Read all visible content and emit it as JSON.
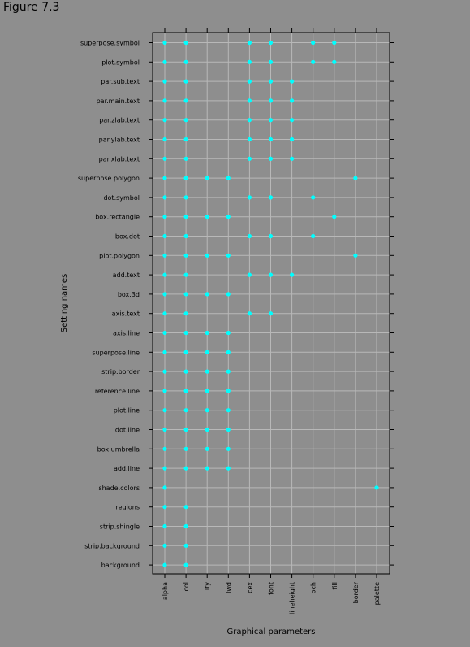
{
  "figure_label": "Figure 7.3",
  "chart_data": {
    "type": "scatter",
    "xlabel": "Graphical parameters",
    "ylabel": "Setting names",
    "grid": true,
    "colors": {
      "background": "#8e8e8e",
      "panel_border": "#000000",
      "grid": "#b8b8b8",
      "point": "#00ffff"
    },
    "x_categories": [
      "alpha",
      "col",
      "lty",
      "lwd",
      "cex",
      "font",
      "lineheight",
      "pch",
      "fill",
      "border",
      "palette"
    ],
    "y_categories": [
      "superpose.symbol",
      "plot.symbol",
      "par.sub.text",
      "par.main.text",
      "par.zlab.text",
      "par.ylab.text",
      "par.xlab.text",
      "superpose.polygon",
      "dot.symbol",
      "box.rectangle",
      "box.dot",
      "plot.polygon",
      "add.text",
      "box.3d",
      "axis.text",
      "axis.line",
      "superpose.line",
      "strip.border",
      "reference.line",
      "plot.line",
      "dot.line",
      "box.umbrella",
      "add.line",
      "shade.colors",
      "regions",
      "strip.shingle",
      "strip.background",
      "background"
    ],
    "points": [
      {
        "setting": "superpose.symbol",
        "params": [
          "alpha",
          "col",
          "cex",
          "font",
          "pch",
          "fill"
        ]
      },
      {
        "setting": "plot.symbol",
        "params": [
          "alpha",
          "col",
          "cex",
          "font",
          "pch",
          "fill"
        ]
      },
      {
        "setting": "par.sub.text",
        "params": [
          "alpha",
          "col",
          "cex",
          "font",
          "lineheight"
        ]
      },
      {
        "setting": "par.main.text",
        "params": [
          "alpha",
          "col",
          "cex",
          "font",
          "lineheight"
        ]
      },
      {
        "setting": "par.zlab.text",
        "params": [
          "alpha",
          "col",
          "cex",
          "font",
          "lineheight"
        ]
      },
      {
        "setting": "par.ylab.text",
        "params": [
          "alpha",
          "col",
          "cex",
          "font",
          "lineheight"
        ]
      },
      {
        "setting": "par.xlab.text",
        "params": [
          "alpha",
          "col",
          "cex",
          "font",
          "lineheight"
        ]
      },
      {
        "setting": "superpose.polygon",
        "params": [
          "alpha",
          "col",
          "lty",
          "lwd",
          "border"
        ]
      },
      {
        "setting": "dot.symbol",
        "params": [
          "alpha",
          "col",
          "cex",
          "font",
          "pch"
        ]
      },
      {
        "setting": "box.rectangle",
        "params": [
          "alpha",
          "col",
          "lty",
          "lwd",
          "fill"
        ]
      },
      {
        "setting": "box.dot",
        "params": [
          "alpha",
          "col",
          "cex",
          "font",
          "pch"
        ]
      },
      {
        "setting": "plot.polygon",
        "params": [
          "alpha",
          "col",
          "lty",
          "lwd",
          "border"
        ]
      },
      {
        "setting": "add.text",
        "params": [
          "alpha",
          "col",
          "cex",
          "font",
          "lineheight"
        ]
      },
      {
        "setting": "box.3d",
        "params": [
          "alpha",
          "col",
          "lty",
          "lwd"
        ]
      },
      {
        "setting": "axis.text",
        "params": [
          "alpha",
          "col",
          "cex",
          "font"
        ]
      },
      {
        "setting": "axis.line",
        "params": [
          "alpha",
          "col",
          "lty",
          "lwd"
        ]
      },
      {
        "setting": "superpose.line",
        "params": [
          "alpha",
          "col",
          "lty",
          "lwd"
        ]
      },
      {
        "setting": "strip.border",
        "params": [
          "alpha",
          "col",
          "lty",
          "lwd"
        ]
      },
      {
        "setting": "reference.line",
        "params": [
          "alpha",
          "col",
          "lty",
          "lwd"
        ]
      },
      {
        "setting": "plot.line",
        "params": [
          "alpha",
          "col",
          "lty",
          "lwd"
        ]
      },
      {
        "setting": "dot.line",
        "params": [
          "alpha",
          "col",
          "lty",
          "lwd"
        ]
      },
      {
        "setting": "box.umbrella",
        "params": [
          "alpha",
          "col",
          "lty",
          "lwd"
        ]
      },
      {
        "setting": "add.line",
        "params": [
          "alpha",
          "col",
          "lty",
          "lwd"
        ]
      },
      {
        "setting": "shade.colors",
        "params": [
          "alpha",
          "palette"
        ]
      },
      {
        "setting": "regions",
        "params": [
          "alpha",
          "col"
        ]
      },
      {
        "setting": "strip.shingle",
        "params": [
          "alpha",
          "col"
        ]
      },
      {
        "setting": "strip.background",
        "params": [
          "alpha",
          "col"
        ]
      },
      {
        "setting": "background",
        "params": [
          "alpha",
          "col"
        ]
      }
    ]
  }
}
